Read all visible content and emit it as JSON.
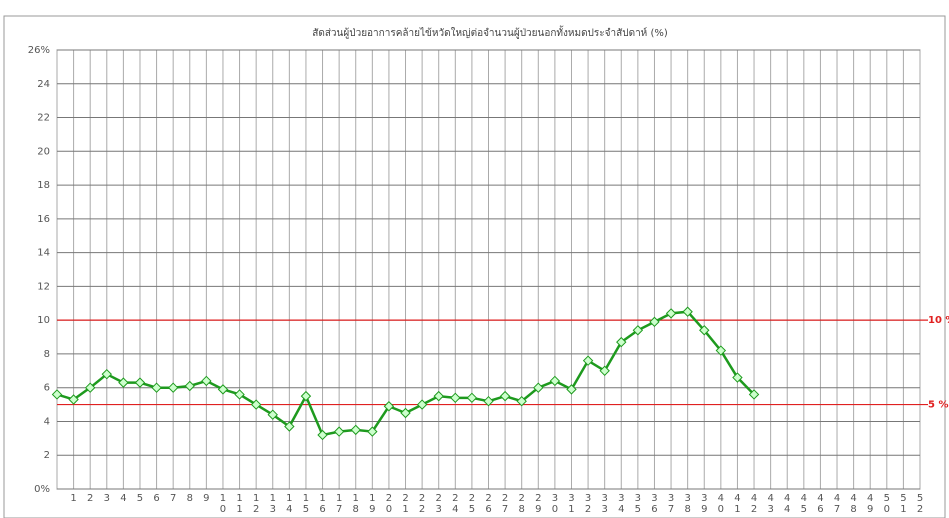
{
  "chart_data": {
    "type": "line",
    "title": "สัดส่วนผู้ป่วยอาการคล้ายไข้หวัดใหญ่ต่อจำนวนผู้ป่วยนอกทั้งหมดประจำสัปดาห์ (%)",
    "categories": [
      null,
      "1",
      "2",
      "3",
      "4",
      "5",
      "6",
      "7",
      "8",
      "9",
      "10",
      "11",
      "12",
      "13",
      "14",
      "15",
      "16",
      "17",
      "18",
      "19",
      "20",
      "21",
      "22",
      "23",
      "24",
      "25",
      "26",
      "27",
      "28",
      "29",
      "30",
      "31",
      "32",
      "33",
      "34",
      "35",
      "36",
      "37",
      "38",
      "39",
      "40",
      "41",
      "42",
      "43",
      "44",
      "45",
      "46",
      "47",
      "48",
      "49",
      "50",
      "51",
      "52"
    ],
    "series": [
      {
        "color": "#1e9a1e",
        "values": [
          5.6,
          5.3,
          6.0,
          6.8,
          6.3,
          6.3,
          6.0,
          6.0,
          6.1,
          6.4,
          5.9,
          5.6,
          5.0,
          4.4,
          3.7,
          5.5,
          3.2,
          3.4,
          3.5,
          3.4,
          4.9,
          4.5,
          5.0,
          5.5,
          5.4,
          5.4,
          5.2,
          5.5,
          5.2,
          6.0,
          6.4,
          5.9,
          7.6,
          7.0,
          8.7,
          9.4,
          9.9,
          10.4,
          10.5,
          9.4,
          8.2,
          6.6,
          5.6,
          null,
          null,
          null,
          null,
          null,
          null,
          null,
          null,
          null,
          null
        ]
      }
    ],
    "ylim": [
      0,
      26
    ],
    "yticks": [
      {
        "value": 0,
        "label": "0%"
      },
      2,
      4,
      6,
      8,
      10,
      12,
      14,
      16,
      18,
      20,
      22,
      24,
      {
        "value": 26,
        "label": "26%"
      }
    ],
    "grid": true,
    "reference_lines": [
      {
        "value": 10,
        "label": "10 %",
        "color": "#e02020"
      },
      {
        "value": 5,
        "label": "5 %",
        "color": "#e02020"
      }
    ]
  }
}
